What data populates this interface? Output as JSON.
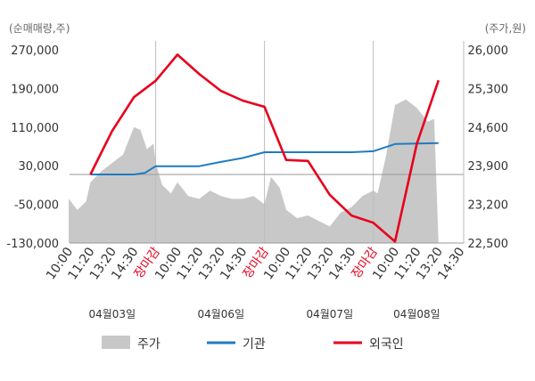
{
  "chart_data": {
    "type": "line",
    "left_axis_unit": "(순매매량,주)",
    "right_axis_unit": "(주가,원)",
    "ylim_left": [
      -130000,
      270000
    ],
    "yticks_left": [
      "270,000",
      "190,000",
      "110,000",
      "30,000",
      "-50,000",
      "-130,000"
    ],
    "ylim_right": [
      22500,
      26000
    ],
    "yticks_right": [
      "26,000",
      "25,300",
      "24,600",
      "23,900",
      "23,200",
      "22,500"
    ],
    "x_ticks": [
      {
        "label": "10:00",
        "close": false
      },
      {
        "label": "11:20",
        "close": false
      },
      {
        "label": "13:20",
        "close": false
      },
      {
        "label": "14:30",
        "close": false
      },
      {
        "label": "장마감",
        "close": true
      },
      {
        "label": "10:00",
        "close": false
      },
      {
        "label": "11:20",
        "close": false
      },
      {
        "label": "13:20",
        "close": false
      },
      {
        "label": "14:30",
        "close": false
      },
      {
        "label": "장마감",
        "close": true
      },
      {
        "label": "10:00",
        "close": false
      },
      {
        "label": "11:20",
        "close": false
      },
      {
        "label": "13:20",
        "close": false
      },
      {
        "label": "14:30",
        "close": false
      },
      {
        "label": "장마감",
        "close": true
      },
      {
        "label": "10:00",
        "close": false
      },
      {
        "label": "11:20",
        "close": false
      },
      {
        "label": "13:20",
        "close": false
      },
      {
        "label": "14:30",
        "close": false
      }
    ],
    "dates": [
      {
        "label": "04월03일",
        "tick_index": 2
      },
      {
        "label": "04월06일",
        "tick_index": 7
      },
      {
        "label": "04월07일",
        "tick_index": 12
      },
      {
        "label": "04월08일",
        "tick_index": 16
      }
    ],
    "day_separator_ticks": [
      4,
      9,
      14
    ],
    "series": [
      {
        "name": "기관",
        "color": "#1f7bc1",
        "axis": "left",
        "points": [
          [
            1,
            12000
          ],
          [
            2,
            12000
          ],
          [
            3,
            12000
          ],
          [
            3.5,
            15000
          ],
          [
            4,
            29000
          ],
          [
            5,
            29000
          ],
          [
            6,
            29000
          ],
          [
            7,
            38000
          ],
          [
            8,
            46000
          ],
          [
            9,
            58000
          ],
          [
            10,
            58000
          ],
          [
            11,
            58000
          ],
          [
            12,
            58000
          ],
          [
            13,
            58000
          ],
          [
            14,
            60000
          ],
          [
            15,
            75000
          ],
          [
            16,
            76000
          ],
          [
            17,
            77000
          ]
        ]
      },
      {
        "name": "외국인",
        "color": "#e8001c",
        "axis": "left",
        "points": [
          [
            1,
            12000
          ],
          [
            2,
            102000
          ],
          [
            3,
            172000
          ],
          [
            4,
            206000
          ],
          [
            5,
            260000
          ],
          [
            6,
            220000
          ],
          [
            7,
            185000
          ],
          [
            8,
            165000
          ],
          [
            9,
            152000
          ],
          [
            10,
            42000
          ],
          [
            11,
            40000
          ],
          [
            12,
            -30000
          ],
          [
            13,
            -73000
          ],
          [
            14,
            -88000
          ],
          [
            15,
            -127000
          ],
          [
            16,
            75000
          ],
          [
            17,
            207000
          ]
        ]
      }
    ],
    "price_series": {
      "name": "주가",
      "color": "#c8c8c8",
      "axis": "right",
      "points": [
        [
          0,
          23300
        ],
        [
          0.4,
          23100
        ],
        [
          0.8,
          23250
        ],
        [
          1,
          23600
        ],
        [
          1.5,
          23800
        ],
        [
          2,
          23950
        ],
        [
          2.5,
          24100
        ],
        [
          3,
          24600
        ],
        [
          3.3,
          24550
        ],
        [
          3.6,
          24200
        ],
        [
          3.9,
          24300
        ],
        [
          4,
          23950
        ],
        [
          4.3,
          23550
        ],
        [
          4.7,
          23400
        ],
        [
          5,
          23600
        ],
        [
          5.5,
          23350
        ],
        [
          6,
          23300
        ],
        [
          6.5,
          23450
        ],
        [
          7,
          23350
        ],
        [
          7.5,
          23300
        ],
        [
          8,
          23300
        ],
        [
          8.5,
          23350
        ],
        [
          9,
          23200
        ],
        [
          9.3,
          23700
        ],
        [
          9.7,
          23500
        ],
        [
          10,
          23100
        ],
        [
          10.5,
          22950
        ],
        [
          11,
          23000
        ],
        [
          11.5,
          22900
        ],
        [
          12,
          22800
        ],
        [
          12.5,
          23050
        ],
        [
          13,
          23150
        ],
        [
          13.5,
          23350
        ],
        [
          14,
          23450
        ],
        [
          14.2,
          23400
        ],
        [
          14.6,
          24100
        ],
        [
          15,
          25000
        ],
        [
          15.5,
          25100
        ],
        [
          16,
          24950
        ],
        [
          16.5,
          24700
        ],
        [
          16.8,
          24750
        ],
        [
          17,
          22500
        ]
      ]
    }
  },
  "legend": [
    {
      "label": "주가",
      "kind": "box",
      "color": "#c8c8c8"
    },
    {
      "label": "기관",
      "kind": "line",
      "color": "#1f7bc1"
    },
    {
      "label": "외국인",
      "kind": "line",
      "color": "#e8001c"
    }
  ]
}
